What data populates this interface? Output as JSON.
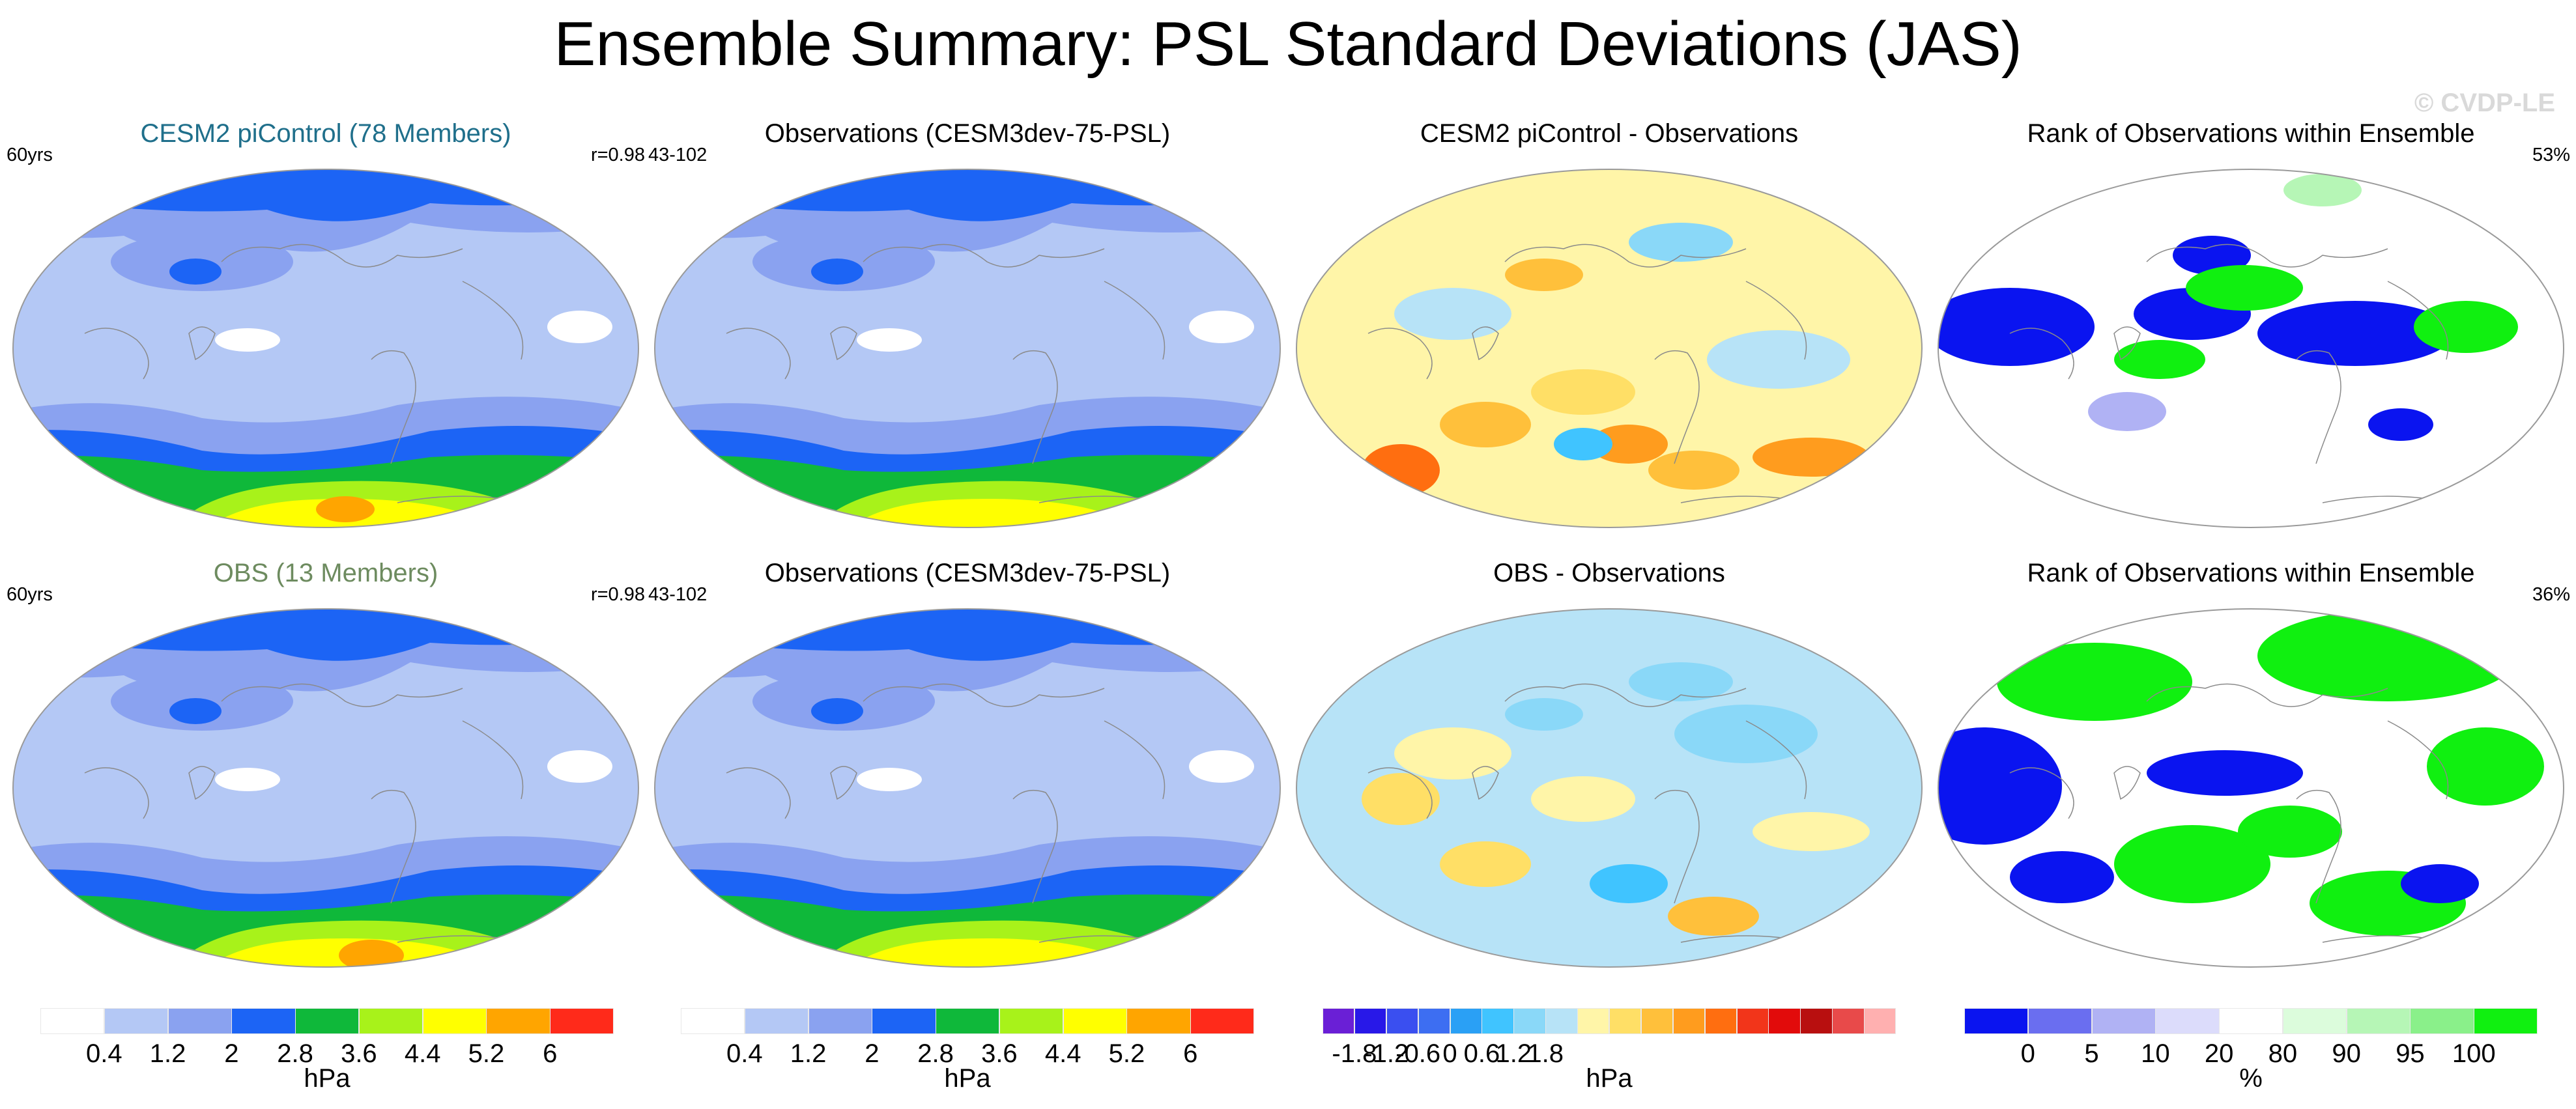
{
  "title": "Ensemble Summary: PSL Standard Deviations (JAS)",
  "watermark": "© CVDP-LE",
  "colors": {
    "title_model": "#1f6f8b",
    "title_obs": "#6d8b5f",
    "title_default": "#000000"
  },
  "chart_data": [
    {
      "type": "heatmap",
      "title": "CESM2 piControl (78 Members)",
      "title_color": "#1f6f8b",
      "left_label": "60yrs",
      "right_label": "r=0.98",
      "units": "hPa",
      "scale": "psl_std"
    },
    {
      "type": "heatmap",
      "title": "Observations (CESM3dev-75-PSL)",
      "left_label": "43-102",
      "right_label": "",
      "units": "hPa",
      "scale": "psl_std"
    },
    {
      "type": "heatmap",
      "title": "CESM2 piControl - Observations",
      "left_label": "",
      "right_label": "",
      "units": "hPa",
      "scale": "diff"
    },
    {
      "type": "heatmap",
      "title": "Rank of Observations within Ensemble",
      "left_label": "",
      "right_label": "53%",
      "units": "%",
      "scale": "rank"
    },
    {
      "type": "heatmap",
      "title": "OBS (13 Members)",
      "title_color": "#6d8b5f",
      "left_label": "60yrs",
      "right_label": "r=0.98",
      "units": "hPa",
      "scale": "psl_std"
    },
    {
      "type": "heatmap",
      "title": "Observations (CESM3dev-75-PSL)",
      "left_label": "43-102",
      "right_label": "",
      "units": "hPa",
      "scale": "psl_std"
    },
    {
      "type": "heatmap",
      "title": "OBS - Observations",
      "left_label": "",
      "right_label": "",
      "units": "hPa",
      "scale": "diff"
    },
    {
      "type": "heatmap",
      "title": "Rank of Observations within Ensemble",
      "left_label": "",
      "right_label": "36%",
      "units": "%",
      "scale": "rank"
    }
  ],
  "colorbars": {
    "psl_std": {
      "units": "hPa",
      "colors": [
        "#ffffff",
        "#b4c8f5",
        "#8aa2f0",
        "#1c64f5",
        "#0fb83a",
        "#a8f21a",
        "#ffff00",
        "#ffa500",
        "#ff2a1a"
      ],
      "tick_labels": [
        "0.4",
        "1.2",
        "2",
        "2.8",
        "3.6",
        "4.4",
        "5.2",
        "6"
      ]
    },
    "diff": {
      "units": "hPa",
      "colors": [
        "#6a1fd6",
        "#2818e8",
        "#3a4ff0",
        "#3d6ef2",
        "#2aa0f5",
        "#40c4ff",
        "#8ad8f8",
        "#b7e3f7",
        "#fff5a8",
        "#ffdf66",
        "#ffc03b",
        "#ff9c1e",
        "#ff6e10",
        "#f2351a",
        "#e20b0b",
        "#b80f0f",
        "#e84a4a",
        "#ffb0b0"
      ],
      "tick_labels": [
        "-1.8",
        "-1.2",
        "-0.6",
        "0",
        "0.6",
        "1.2",
        "1.8"
      ]
    },
    "rank": {
      "units": "%",
      "colors": [
        "#0a14f0",
        "#6a6ef0",
        "#b0b2f4",
        "#dcdcfb",
        "#ffffff",
        "#dcfcdc",
        "#b6f6b6",
        "#8af08a",
        "#10f010"
      ],
      "tick_labels": [
        "0",
        "5",
        "10",
        "20",
        "80",
        "90",
        "95",
        "100"
      ]
    }
  },
  "colorbar_order": [
    "psl_std",
    "psl_std",
    "diff",
    "rank"
  ]
}
